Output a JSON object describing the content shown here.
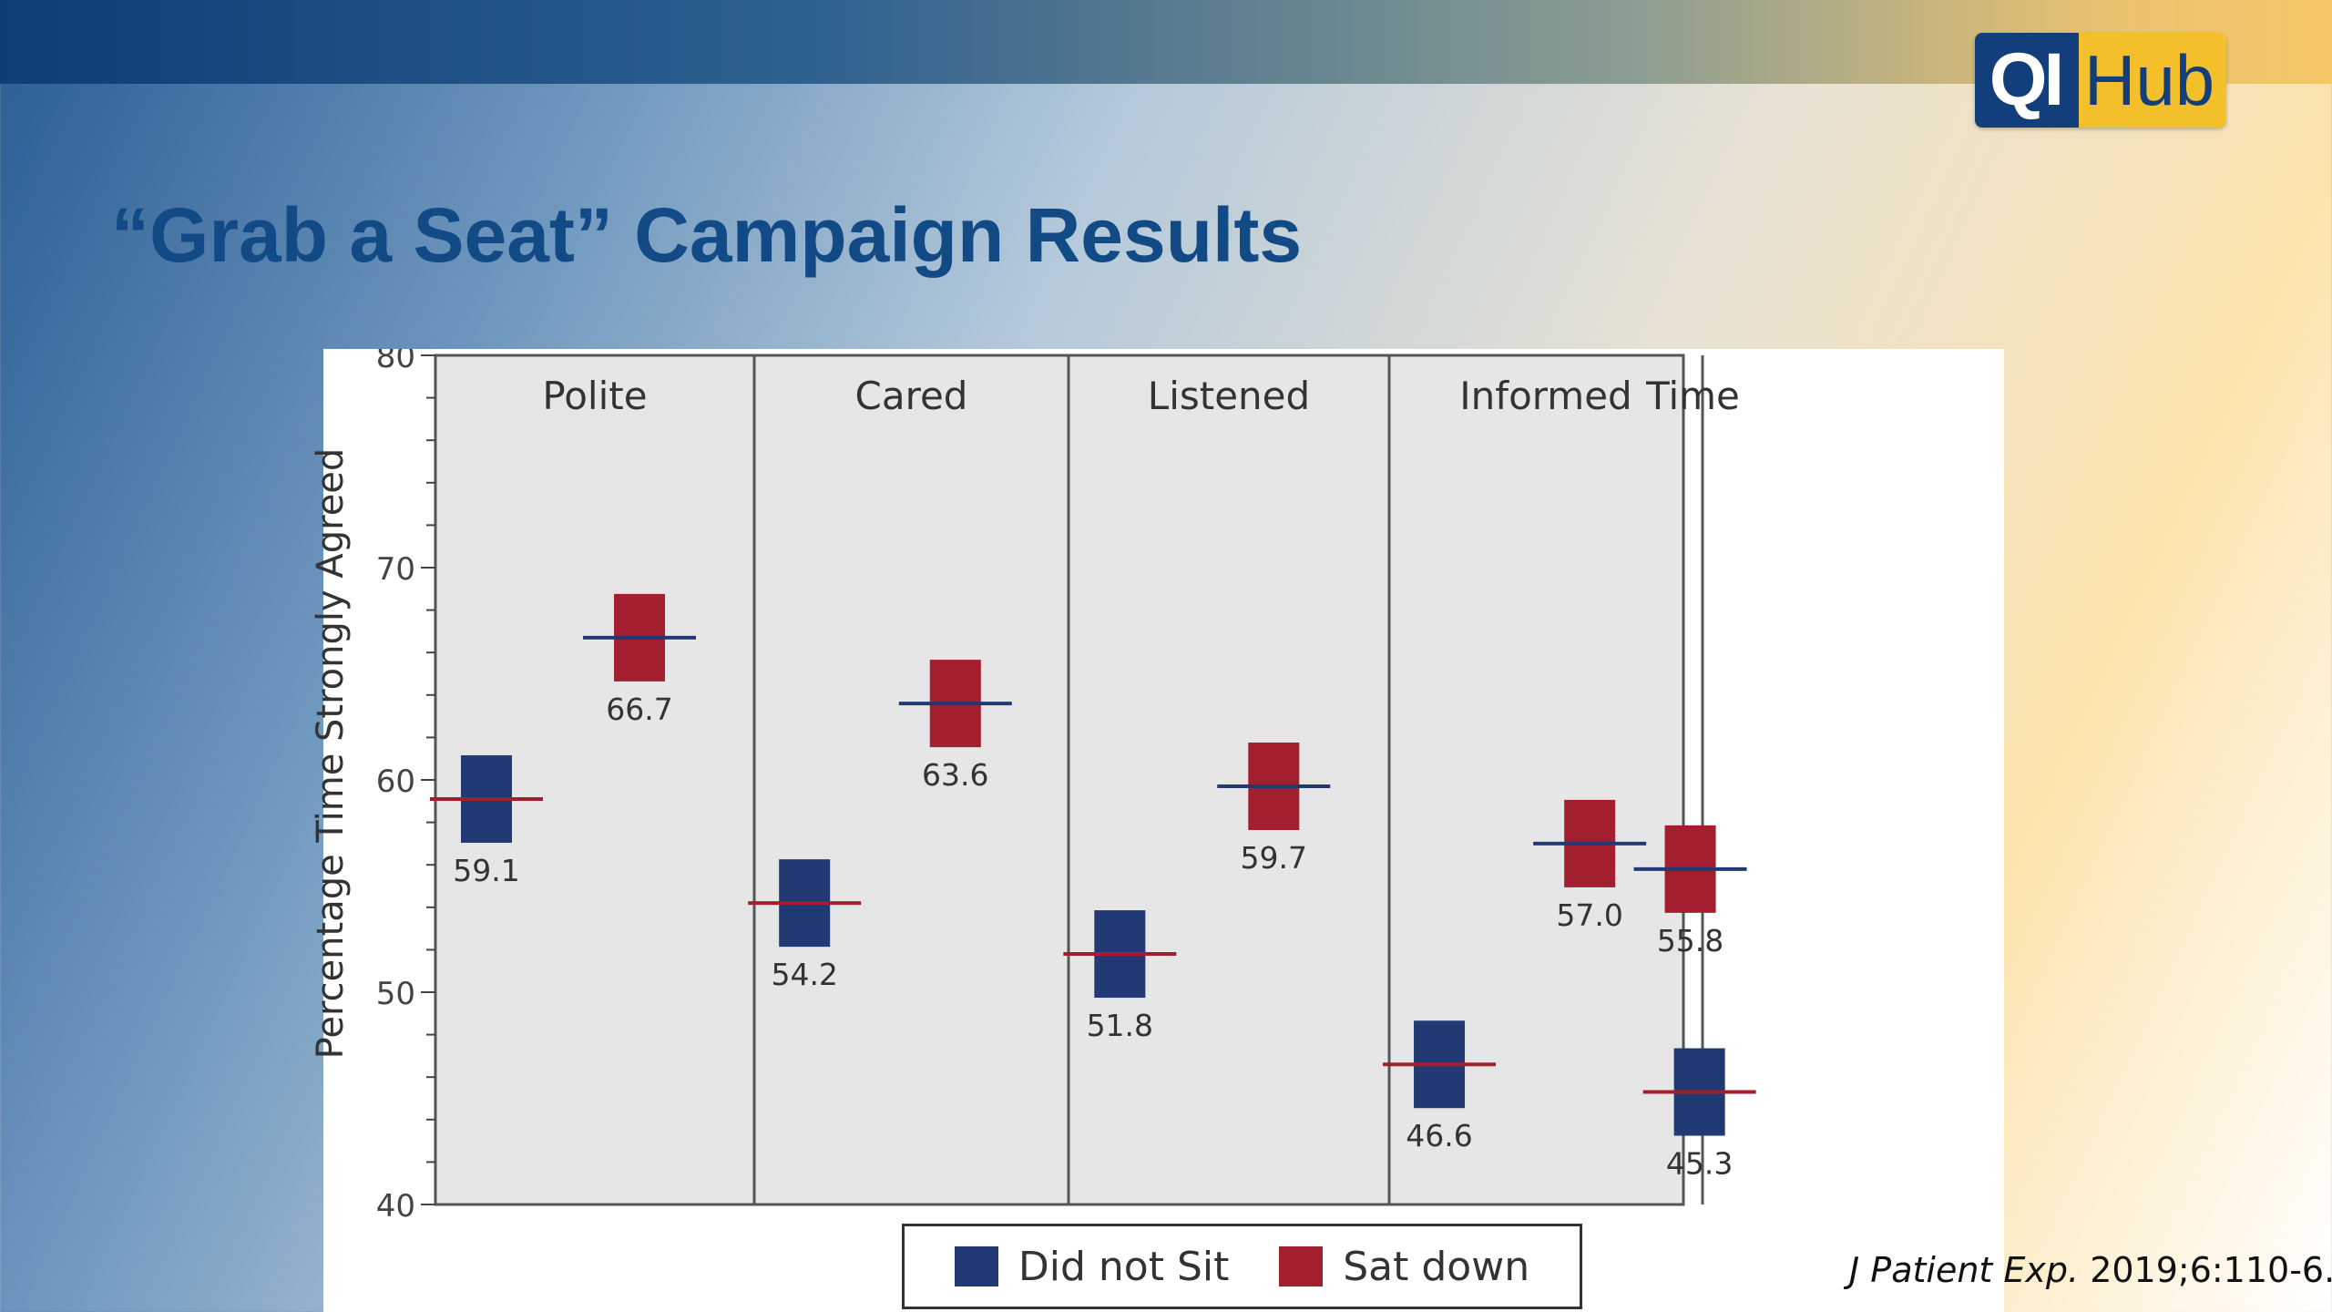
{
  "logo": {
    "qi": "QI",
    "hub": "Hub"
  },
  "slide": {
    "title": "“Grab a Seat” Campaign Results"
  },
  "citation": {
    "journal": "J Patient Exp.",
    "details": "2019;6:110-6."
  },
  "colors": {
    "did_not_sit": "#223a73",
    "sat_down": "#a31e2f",
    "panel_bg": "#e6e6e6",
    "title": "#114a85"
  },
  "chart_data": {
    "type": "scatter",
    "title": "",
    "xlabel": "",
    "ylabel": "Percentage Time Strongly Agreed",
    "ylim": [
      40,
      80
    ],
    "yticks": [
      40,
      50,
      60,
      70,
      80
    ],
    "categories": [
      "Polite",
      "Cared",
      "Listened",
      "Informed",
      "Time"
    ],
    "series": [
      {
        "name": "Did not Sit",
        "color": "#223a73",
        "values": [
          59.1,
          54.2,
          51.8,
          46.6,
          45.3
        ],
        "labels": [
          "59.1",
          "54.2",
          "51.8",
          "46.6",
          "45.3"
        ]
      },
      {
        "name": "Sat down",
        "color": "#a31e2f",
        "values": [
          66.7,
          63.6,
          59.7,
          57.0,
          55.8
        ],
        "labels": [
          "66.7",
          "63.6",
          "59.7",
          "57.0",
          "55.8"
        ]
      }
    ],
    "legend_position": "bottom"
  }
}
